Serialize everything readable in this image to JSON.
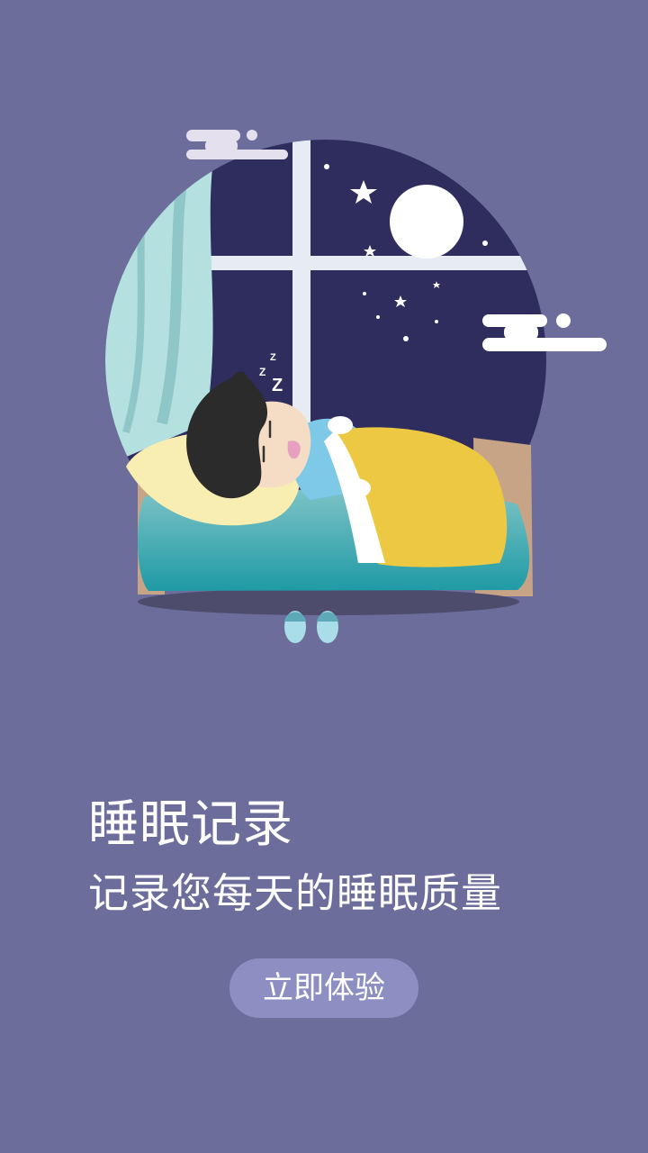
{
  "onboarding": {
    "title": "睡眠记录",
    "subtitle": "记录您每天的睡眠质量",
    "cta_label": "立即体验"
  },
  "illustration": {
    "subject": "person-sleeping-in-bed-by-night-window",
    "elements": [
      "window",
      "curtain",
      "moon",
      "stars",
      "clouds",
      "pillow",
      "blanket",
      "slippers",
      "zzz-icon"
    ]
  },
  "colors": {
    "background": "#6c6d9b",
    "night_sky": "#2e2d5e",
    "button": "#8d8fc2",
    "text": "#ffffff"
  }
}
